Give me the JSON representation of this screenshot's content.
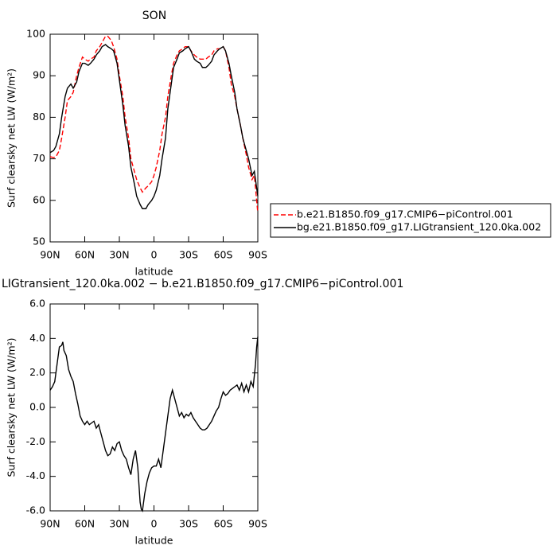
{
  "chart_data": [
    {
      "type": "line",
      "title": "SON",
      "xlabel": "latitude",
      "ylabel": "Surf clearsky net LW (W/m²)",
      "x": [
        90,
        87,
        85,
        82,
        80,
        77,
        75,
        72,
        70,
        67,
        65,
        62,
        60,
        57,
        55,
        52,
        50,
        47,
        45,
        42,
        40,
        37,
        35,
        32,
        30,
        27,
        25,
        22,
        20,
        17,
        15,
        12,
        10,
        7,
        5,
        2,
        0,
        -2,
        -5,
        -7,
        -10,
        -12,
        -15,
        -17,
        -20,
        -22,
        -25,
        -27,
        -30,
        -32,
        -35,
        -37,
        -40,
        -42,
        -45,
        -47,
        -50,
        -52,
        -55,
        -57,
        -60,
        -62,
        -65,
        -67,
        -70,
        -72,
        -75,
        -77,
        -80,
        -82,
        -85,
        -87,
        -88,
        -90
      ],
      "series": [
        {
          "name": "b.e21.B1850.f09_g17.CMIP6−piControl.001",
          "color": "#ff0000",
          "dash": true,
          "values": [
            70.5,
            70.3,
            70.5,
            72,
            75,
            80,
            84,
            85,
            86,
            90,
            92,
            94.5,
            94,
            93.5,
            94,
            94.5,
            96,
            97,
            98,
            99.5,
            99.5,
            98.5,
            97,
            94,
            90,
            85,
            80,
            75,
            70,
            67,
            65,
            63,
            62,
            63,
            63.5,
            64.5,
            66,
            68,
            72,
            76,
            80,
            85,
            90,
            93,
            95,
            96,
            96.5,
            97,
            97,
            96,
            95,
            94.5,
            94,
            94,
            94,
            94.5,
            95,
            96,
            96.5,
            96.5,
            97,
            96,
            92,
            88,
            85,
            82,
            78,
            75,
            71,
            68,
            65,
            66,
            63,
            57
          ]
        },
        {
          "name": "bg.e21.B1850.f09_g17.LIGtransient_120.0ka.002",
          "color": "#000000",
          "dash": false,
          "values": [
            71.5,
            72,
            73,
            76,
            80,
            85,
            87,
            88,
            87,
            88.5,
            91,
            93,
            93,
            92.5,
            93,
            94,
            95,
            96,
            97,
            97.5,
            97,
            96.5,
            96,
            93,
            89,
            83,
            78,
            73,
            68,
            64,
            61,
            59,
            58,
            58,
            59,
            60,
            61,
            62.5,
            66,
            70,
            75,
            82,
            88,
            92,
            94,
            95.5,
            96,
            96.5,
            97,
            96,
            94,
            93.5,
            93,
            92,
            92,
            92.5,
            93.5,
            95,
            96,
            96.5,
            97,
            96,
            93,
            90,
            86,
            82,
            78,
            75,
            72,
            70,
            66,
            67,
            65,
            61
          ]
        }
      ],
      "xlim": [
        90,
        -90
      ],
      "xticks": [
        {
          "value": 90,
          "label": "90N"
        },
        {
          "value": 60,
          "label": "60N"
        },
        {
          "value": 30,
          "label": "30N"
        },
        0,
        {
          "value": -30,
          "label": "30S"
        },
        {
          "value": -60,
          "label": "60S"
        },
        {
          "value": -90,
          "label": "90S"
        }
      ],
      "ylim": [
        50,
        100
      ],
      "yticks": [
        50,
        60,
        70,
        80,
        90,
        100
      ]
    },
    {
      "type": "line",
      "title": "LIGtransient_120.0ka.002 − b.e21.B1850.f09_g17.CMIP6−piControl.001",
      "xlabel": "latitude",
      "ylabel": "Surf clearsky net LW (W/m²)",
      "x": [
        90,
        88,
        86,
        84,
        82,
        80,
        79,
        78,
        76,
        74,
        72,
        70,
        68,
        66,
        64,
        62,
        60,
        58,
        56,
        54,
        52,
        50,
        48,
        46,
        44,
        42,
        40,
        38,
        36,
        34,
        32,
        30,
        28,
        26,
        24,
        22,
        20,
        18,
        16,
        14,
        12,
        11,
        10,
        8,
        6,
        4,
        2,
        0,
        -2,
        -4,
        -6,
        -8,
        -10,
        -12,
        -14,
        -16,
        -18,
        -20,
        -22,
        -24,
        -26,
        -28,
        -30,
        -32,
        -34,
        -36,
        -38,
        -40,
        -42,
        -44,
        -46,
        -48,
        -50,
        -52,
        -54,
        -56,
        -58,
        -60,
        -62,
        -64,
        -66,
        -68,
        -70,
        -72,
        -74,
        -76,
        -78,
        -80,
        -82,
        -84,
        -86,
        -88,
        -89,
        -90
      ],
      "series": [
        {
          "color": "#000000",
          "dash": false,
          "values": [
            1.0,
            1.2,
            1.5,
            2.5,
            3.5,
            3.6,
            3.8,
            3.3,
            3.0,
            2.2,
            1.8,
            1.5,
            0.8,
            0.2,
            -0.5,
            -0.8,
            -1.0,
            -0.8,
            -1.0,
            -0.9,
            -0.8,
            -1.2,
            -1.0,
            -1.5,
            -2.0,
            -2.5,
            -2.8,
            -2.7,
            -2.3,
            -2.5,
            -2.1,
            -2.0,
            -2.5,
            -2.8,
            -3.0,
            -3.5,
            -3.9,
            -3.0,
            -2.5,
            -3.5,
            -5.5,
            -5.9,
            -6.0,
            -5.0,
            -4.3,
            -3.8,
            -3.5,
            -3.4,
            -3.4,
            -3.0,
            -3.5,
            -2.5,
            -1.5,
            -0.5,
            0.5,
            1.0,
            0.5,
            0.0,
            -0.5,
            -0.3,
            -0.6,
            -0.4,
            -0.5,
            -0.3,
            -0.6,
            -0.8,
            -1.0,
            -1.2,
            -1.3,
            -1.3,
            -1.2,
            -1.0,
            -0.8,
            -0.5,
            -0.2,
            0.0,
            0.5,
            0.9,
            0.7,
            0.8,
            1.0,
            1.1,
            1.2,
            1.3,
            1.0,
            1.4,
            0.9,
            1.3,
            0.9,
            1.5,
            1.2,
            2.5,
            3.5,
            4.1
          ]
        }
      ],
      "xlim": [
        90,
        -90
      ],
      "xticks": [
        {
          "value": 90,
          "label": "90N"
        },
        {
          "value": 60,
          "label": "60N"
        },
        {
          "value": 30,
          "label": "30N"
        },
        0,
        {
          "value": -30,
          "label": "30S"
        },
        {
          "value": -60,
          "label": "60S"
        },
        {
          "value": -90,
          "label": "90S"
        }
      ],
      "ylim": [
        -6,
        6
      ],
      "yticks": [
        {
          "value": -6,
          "label": "-6.0"
        },
        {
          "value": -4,
          "label": "-4.0"
        },
        {
          "value": -2,
          "label": "-2.0"
        },
        {
          "value": 0,
          "label": "0.0"
        },
        {
          "value": 2,
          "label": "2.0"
        },
        {
          "value": 4,
          "label": "4.0"
        },
        {
          "value": 6,
          "label": "6.0"
        }
      ]
    }
  ]
}
